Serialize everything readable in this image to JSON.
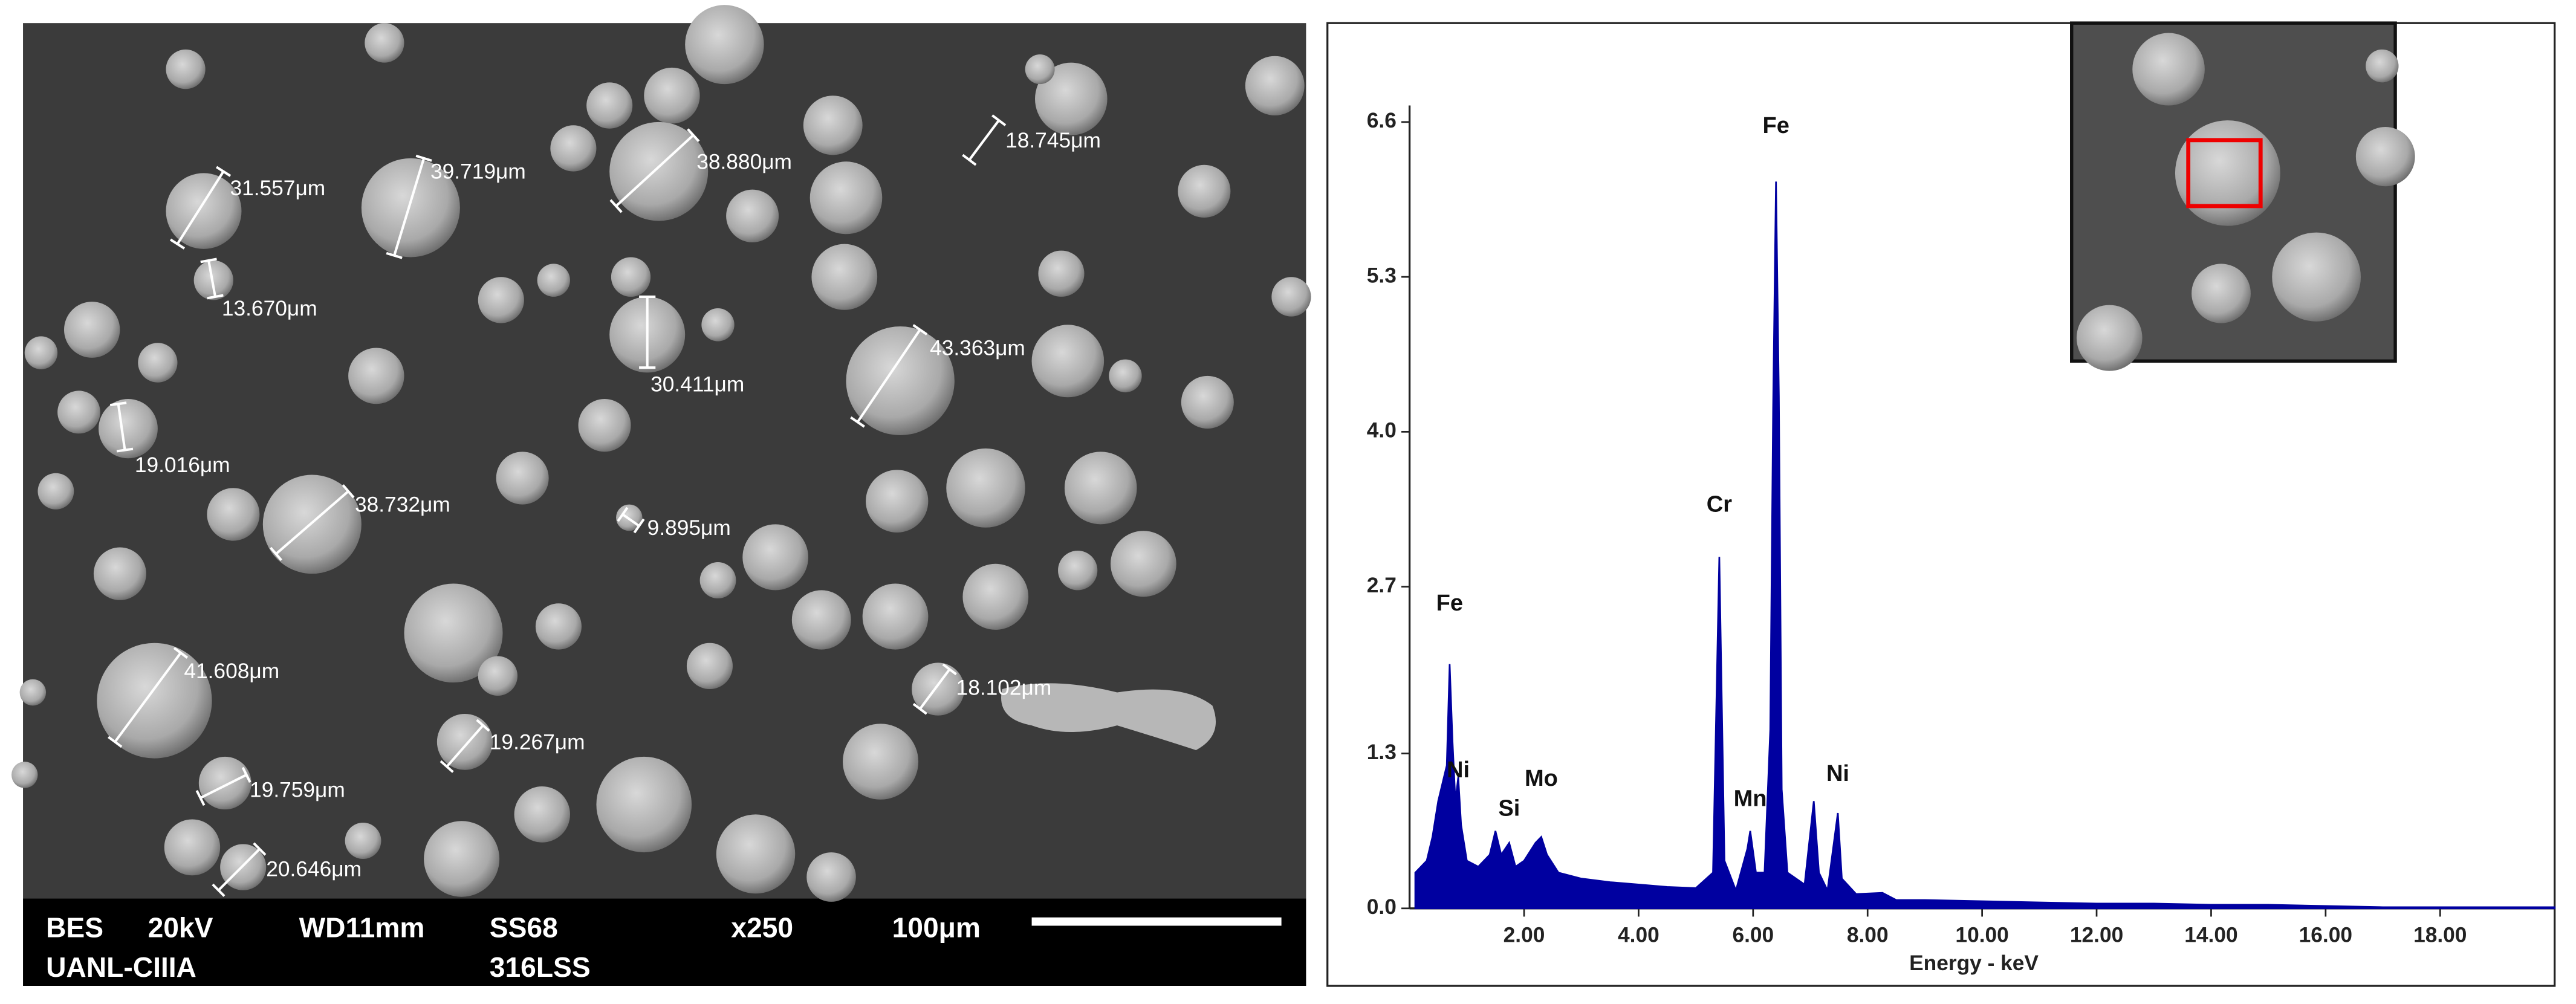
{
  "sem_image": {
    "measurements": [
      "31.557μm",
      "39.719μm",
      "38.880μm",
      "18.745μm",
      "13.670μm",
      "30.411μm",
      "43.363μm",
      "19.016μm",
      "38.732μm",
      "9.895μm",
      "41.608μm",
      "18.102μm",
      "19.267μm",
      "19.759μm",
      "20.646μm"
    ],
    "info_bar": [
      "BES",
      "20kV",
      "WD11mm",
      "SS68",
      "x250",
      "100μm",
      "UANL-CIIIA",
      "316LSS"
    ]
  },
  "chart_data": {
    "type": "area",
    "x_label": "Energy - keV",
    "color": "#0000a0",
    "xlim": [
      0,
      20
    ],
    "ylim": [
      0,
      6.6
    ],
    "xticks": [
      {
        "value": 2,
        "label": "2.00"
      },
      {
        "value": 4,
        "label": "4.00"
      },
      {
        "value": 6,
        "label": "6.00"
      },
      {
        "value": 8,
        "label": "8.00"
      },
      {
        "value": 10,
        "label": "10.00"
      },
      {
        "value": 12,
        "label": "12.00"
      },
      {
        "value": 14,
        "label": "14.00"
      },
      {
        "value": 16,
        "label": "16.00"
      },
      {
        "value": 18,
        "label": "18.00"
      }
    ],
    "yticks": [
      {
        "value": 0,
        "label": "0.0"
      },
      1.3,
      2.7,
      {
        "value": 4,
        "label": "4.0"
      },
      5.3,
      6.6
    ],
    "x": [
      0.1,
      0.2,
      0.3,
      0.4,
      0.5,
      0.6,
      0.65,
      0.7,
      0.75,
      0.8,
      0.85,
      0.9,
      1.0,
      1.2,
      1.4,
      1.5,
      1.6,
      1.74,
      1.85,
      2.0,
      2.2,
      2.3,
      2.4,
      2.6,
      3.0,
      3.5,
      4.0,
      4.5,
      5.0,
      5.3,
      5.41,
      5.5,
      5.7,
      5.9,
      5.95,
      6.05,
      6.2,
      6.3,
      6.35,
      6.4,
      6.45,
      6.5,
      6.6,
      6.9,
      7.06,
      7.15,
      7.3,
      7.48,
      7.55,
      7.8,
      8.26,
      8.5,
      9,
      10,
      11,
      12,
      13,
      14,
      15,
      16,
      17,
      18,
      19,
      20
    ],
    "values": [
      0.3,
      0.35,
      0.4,
      0.6,
      0.9,
      1.1,
      1.2,
      2.05,
      1.4,
      0.9,
      1.1,
      0.7,
      0.4,
      0.35,
      0.45,
      0.65,
      0.45,
      0.55,
      0.35,
      0.4,
      0.55,
      0.6,
      0.45,
      0.3,
      0.25,
      0.22,
      0.2,
      0.18,
      0.17,
      0.3,
      2.95,
      0.4,
      0.15,
      0.5,
      0.65,
      0.3,
      0.3,
      1.5,
      4.2,
      6.1,
      4.3,
      1.0,
      0.3,
      0.2,
      0.9,
      0.3,
      0.15,
      0.8,
      0.25,
      0.12,
      0.13,
      0.07,
      0.07,
      0.06,
      0.05,
      0.04,
      0.04,
      0.03,
      0.03,
      0.02,
      0.01,
      0.01,
      0.01,
      0.01
    ],
    "annotations": [
      {
        "text": "Fe",
        "x": 0.7,
        "y": 2.55
      },
      {
        "text": "Ni",
        "x": 0.85,
        "y": 1.15
      },
      {
        "text": "Si",
        "x": 1.74,
        "y": 0.83
      },
      {
        "text": "Mo",
        "x": 2.3,
        "y": 1.08
      },
      {
        "text": "Cr",
        "x": 5.41,
        "y": 3.38
      },
      {
        "text": "Mn",
        "x": 5.95,
        "y": 0.91
      },
      {
        "text": "Fe",
        "x": 6.4,
        "y": 6.56
      },
      {
        "text": "Ni",
        "x": 7.48,
        "y": 1.12
      }
    ]
  }
}
